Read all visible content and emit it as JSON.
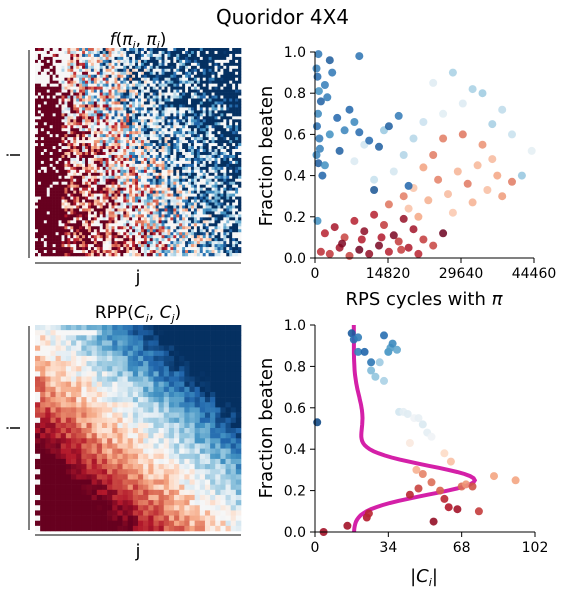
{
  "figure": {
    "title": "Quoridor 4X4"
  },
  "chart_data": [
    {
      "type": "heatmap",
      "title": "f(πi, πj)",
      "xlabel": "j",
      "ylabel": "i",
      "colormap": "RdBu",
      "colors": {
        "low": "#67001f",
        "mid": "#f7f7f7",
        "high": "#053061"
      },
      "note": "pairwise outcome matrix; red (i beats j) in lower-left, blue in upper-right"
    },
    {
      "type": "scatter",
      "xlabel": "RPS cycles with π",
      "ylabel": "Fraction beaten",
      "xlim": [
        0,
        44460
      ],
      "ylim": [
        0,
        1.0
      ],
      "xticks": [
        "0",
        "14820",
        "29640",
        "44460"
      ],
      "yticks": [
        "0.0",
        "0.2",
        "0.4",
        "0.6",
        "0.8",
        "1.0"
      ],
      "colormap": "RdBu",
      "series": [
        {
          "group": "red-low",
          "points": [
            [
              1200,
              0.03
            ],
            [
              3000,
              0.02
            ],
            [
              5000,
              0.05
            ],
            [
              7000,
              0.01
            ],
            [
              9000,
              0.04
            ],
            [
              11000,
              0.02
            ],
            [
              13000,
              0.06
            ],
            [
              15000,
              0.03
            ],
            [
              17000,
              0.08
            ],
            [
              19000,
              0.05
            ],
            [
              21000,
              0.02
            ],
            [
              24000,
              0.06
            ],
            [
              2000,
              0.12
            ],
            [
              4000,
              0.15
            ],
            [
              6000,
              0.1
            ],
            [
              8000,
              0.18
            ],
            [
              10000,
              0.13
            ],
            [
              12000,
              0.21
            ],
            [
              14000,
              0.16
            ],
            [
              16000,
              0.11
            ],
            [
              18000,
              0.19
            ],
            [
              20000,
              0.14
            ],
            [
              22000,
              0.09
            ],
            [
              26000,
              0.12
            ],
            [
              5500,
              0.07
            ],
            [
              9500,
              0.09
            ],
            [
              13500,
              0.1
            ],
            [
              17500,
              0.04
            ]
          ]
        },
        {
          "group": "orange-mid",
          "points": [
            [
              15000,
              0.26
            ],
            [
              18000,
              0.3
            ],
            [
              20000,
              0.34
            ],
            [
              23000,
              0.28
            ],
            [
              25000,
              0.38
            ],
            [
              27000,
              0.31
            ],
            [
              29000,
              0.42
            ],
            [
              31000,
              0.36
            ],
            [
              33000,
              0.45
            ],
            [
              35000,
              0.33
            ],
            [
              37000,
              0.4
            ],
            [
              24000,
              0.5
            ],
            [
              28000,
              0.22
            ],
            [
              32000,
              0.27
            ],
            [
              30000,
              0.6
            ],
            [
              34000,
              0.55
            ],
            [
              36000,
              0.48
            ],
            [
              22000,
              0.44
            ],
            [
              26000,
              0.58
            ],
            [
              38000,
              0.3
            ],
            [
              40000,
              0.37
            ],
            [
              21000,
              0.2
            ],
            [
              19000,
              0.24
            ]
          ]
        },
        {
          "group": "light-mid",
          "points": [
            [
              10000,
              0.55
            ],
            [
              14000,
              0.62
            ],
            [
              18000,
              0.5
            ],
            [
              22000,
              0.66
            ],
            [
              26000,
              0.7
            ],
            [
              30000,
              0.75
            ],
            [
              34000,
              0.8
            ],
            [
              38000,
              0.72
            ],
            [
              42000,
              0.4
            ],
            [
              16000,
              0.42
            ],
            [
              12000,
              0.38
            ],
            [
              20000,
              0.58
            ],
            [
              24000,
              0.85
            ],
            [
              28000,
              0.9
            ],
            [
              32000,
              0.82
            ],
            [
              36000,
              0.65
            ],
            [
              40000,
              0.6
            ],
            [
              44000,
              0.52
            ],
            [
              8000,
              0.47
            ]
          ]
        },
        {
          "group": "blue-high",
          "points": [
            [
              300,
              0.92
            ],
            [
              500,
              0.88
            ],
            [
              800,
              0.81
            ],
            [
              1200,
              0.76
            ],
            [
              600,
              0.7
            ],
            [
              400,
              0.64
            ],
            [
              900,
              0.58
            ],
            [
              300,
              0.5
            ],
            [
              700,
              0.46
            ],
            [
              1500,
              0.4
            ],
            [
              2000,
              0.84
            ],
            [
              2500,
              0.78
            ],
            [
              3500,
              0.9
            ],
            [
              4500,
              0.68
            ],
            [
              6000,
              0.62
            ],
            [
              8000,
              0.66
            ],
            [
              11000,
              0.57
            ],
            [
              13000,
              0.54
            ],
            [
              7000,
              0.72
            ],
            [
              5000,
              0.52
            ],
            [
              3000,
              0.6
            ],
            [
              9000,
              0.61
            ],
            [
              15000,
              0.64
            ],
            [
              17000,
              0.69
            ],
            [
              19000,
              0.35
            ],
            [
              12000,
              0.33
            ],
            [
              500,
              0.18
            ],
            [
              700,
              0.99
            ],
            [
              3000,
              0.96
            ],
            [
              9000,
              0.98
            ],
            [
              1000,
              0.53
            ],
            [
              2000,
              0.45
            ]
          ]
        }
      ]
    },
    {
      "type": "heatmap",
      "title": "RPP(Ci, Cj)",
      "xlabel": "j",
      "ylabel": "i",
      "colormap": "RdBu",
      "colors": {
        "low": "#67001f",
        "mid": "#f7f7f7",
        "high": "#053061"
      }
    },
    {
      "type": "scatter",
      "xlabel": "|Ci|",
      "ylabel": "Fraction beaten",
      "xlim": [
        0,
        102
      ],
      "ylim": [
        0,
        1.0
      ],
      "xticks": [
        "0",
        "34",
        "68",
        "102"
      ],
      "yticks": [
        "0.0",
        "0.2",
        "0.4",
        "0.6",
        "0.8",
        "1.0"
      ],
      "colormap": "RdBu",
      "curve_color": "#d420a8",
      "points": [
        {
          "x": 1,
          "y": 0.53,
          "c": 0.95
        },
        {
          "x": 4,
          "y": 0.0,
          "c": 0.08
        },
        {
          "x": 15,
          "y": 0.03,
          "c": 0.08
        },
        {
          "x": 17,
          "y": 0.96,
          "c": 0.92
        },
        {
          "x": 18,
          "y": 0.93,
          "c": 0.88
        },
        {
          "x": 20,
          "y": 0.94,
          "c": 0.85
        },
        {
          "x": 20,
          "y": 0.87,
          "c": 0.84
        },
        {
          "x": 23,
          "y": 0.87,
          "c": 0.9
        },
        {
          "x": 24,
          "y": 0.07,
          "c": 0.1
        },
        {
          "x": 25,
          "y": 0.09,
          "c": 0.12
        },
        {
          "x": 26,
          "y": 0.82,
          "c": 0.86
        },
        {
          "x": 26,
          "y": 0.78,
          "c": 0.72
        },
        {
          "x": 28,
          "y": 0.75,
          "c": 0.7
        },
        {
          "x": 30,
          "y": 0.82,
          "c": 0.68
        },
        {
          "x": 32,
          "y": 0.73,
          "c": 0.66
        },
        {
          "x": 32,
          "y": 0.95,
          "c": 0.88
        },
        {
          "x": 34,
          "y": 0.87,
          "c": 0.8
        },
        {
          "x": 35,
          "y": 0.89,
          "c": 0.78
        },
        {
          "x": 36,
          "y": 0.91,
          "c": 0.82
        },
        {
          "x": 38,
          "y": 0.88,
          "c": 0.76
        },
        {
          "x": 39,
          "y": 0.58,
          "c": 0.6
        },
        {
          "x": 41,
          "y": 0.58,
          "c": 0.55
        },
        {
          "x": 43,
          "y": 0.57,
          "c": 0.56
        },
        {
          "x": 46,
          "y": 0.55,
          "c": 0.52
        },
        {
          "x": 48,
          "y": 0.55,
          "c": 0.54
        },
        {
          "x": 50,
          "y": 0.52,
          "c": 0.58
        },
        {
          "x": 52,
          "y": 0.48,
          "c": 0.55
        },
        {
          "x": 54,
          "y": 0.46,
          "c": 0.52
        },
        {
          "x": 60,
          "y": 0.38,
          "c": 0.4
        },
        {
          "x": 63,
          "y": 0.34,
          "c": 0.35
        },
        {
          "x": 68,
          "y": 0.22,
          "c": 0.22
        },
        {
          "x": 70,
          "y": 0.23,
          "c": 0.28
        },
        {
          "x": 73,
          "y": 0.22,
          "c": 0.18
        },
        {
          "x": 76,
          "y": 0.1,
          "c": 0.15
        },
        {
          "x": 83,
          "y": 0.27,
          "c": 0.3
        },
        {
          "x": 93,
          "y": 0.25,
          "c": 0.3
        },
        {
          "x": 44,
          "y": 0.18,
          "c": 0.12
        },
        {
          "x": 48,
          "y": 0.21,
          "c": 0.16
        },
        {
          "x": 54,
          "y": 0.24,
          "c": 0.22
        },
        {
          "x": 58,
          "y": 0.2,
          "c": 0.2
        },
        {
          "x": 60,
          "y": 0.16,
          "c": 0.12
        },
        {
          "x": 62,
          "y": 0.12,
          "c": 0.1
        },
        {
          "x": 66,
          "y": 0.11,
          "c": 0.08
        },
        {
          "x": 50,
          "y": 0.28,
          "c": 0.25
        },
        {
          "x": 44,
          "y": 0.43,
          "c": 0.45
        },
        {
          "x": 47,
          "y": 0.3,
          "c": 0.32
        },
        {
          "x": 55,
          "y": 0.05,
          "c": 0.06
        }
      ]
    }
  ]
}
